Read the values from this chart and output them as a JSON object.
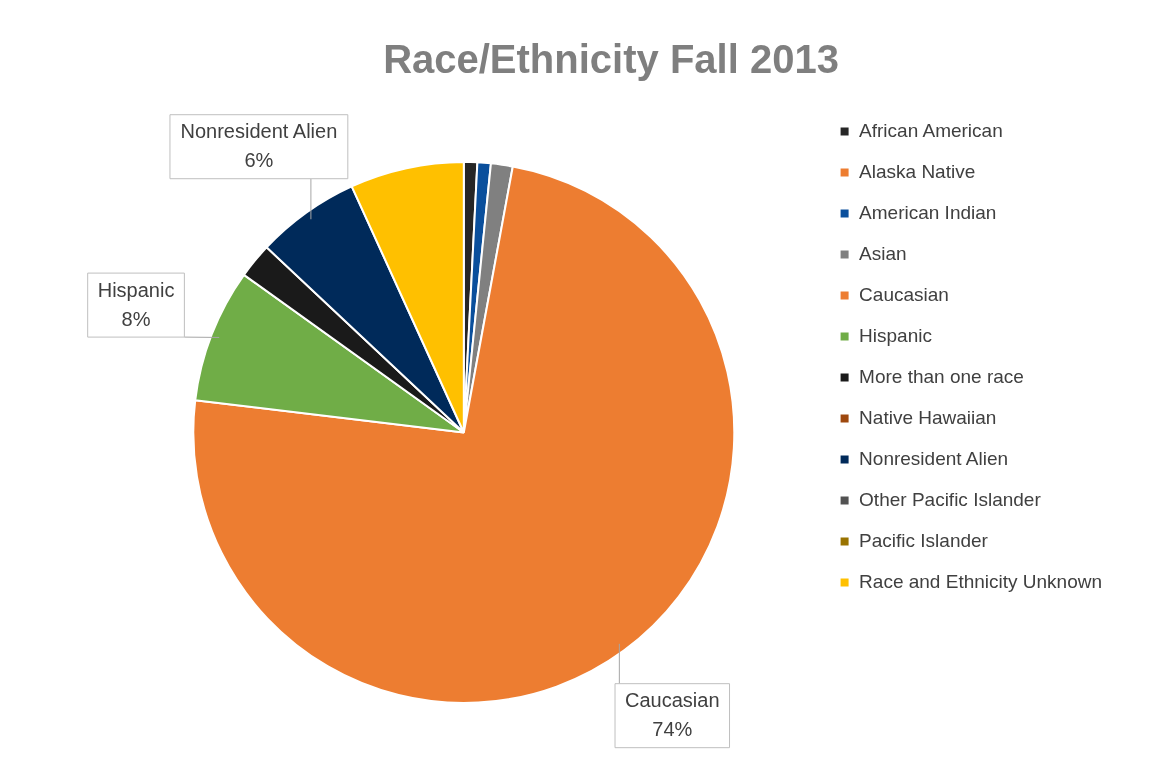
{
  "chart_data": {
    "type": "pie",
    "title": "Race/Ethnicity Fall 2013",
    "categories": [
      "African American",
      "Alaska Native",
      "American Indian",
      "Asian",
      "Caucasian",
      "Hispanic",
      "More than one race",
      "Native Hawaiian",
      "Nonresident Alien",
      "Other Pacific Islander",
      "Pacific Islander",
      "Race and Ethnicity Unknown"
    ],
    "values": [
      0.8,
      0,
      0.8,
      1.3,
      74,
      8,
      2.1,
      0,
      6.2,
      0,
      0,
      6.8
    ],
    "colors": [
      "#262626",
      "#ed7d31",
      "#0a4f9c",
      "#808080",
      "#ed7d31",
      "#70ad47",
      "#1a1a1a",
      "#9e480e",
      "#002a5a",
      "#525252",
      "#997300",
      "#ffc000"
    ],
    "value_labels": [
      null,
      null,
      null,
      null,
      "74%",
      "8%",
      null,
      null,
      "6%",
      null,
      null,
      null
    ],
    "legend": "right"
  }
}
